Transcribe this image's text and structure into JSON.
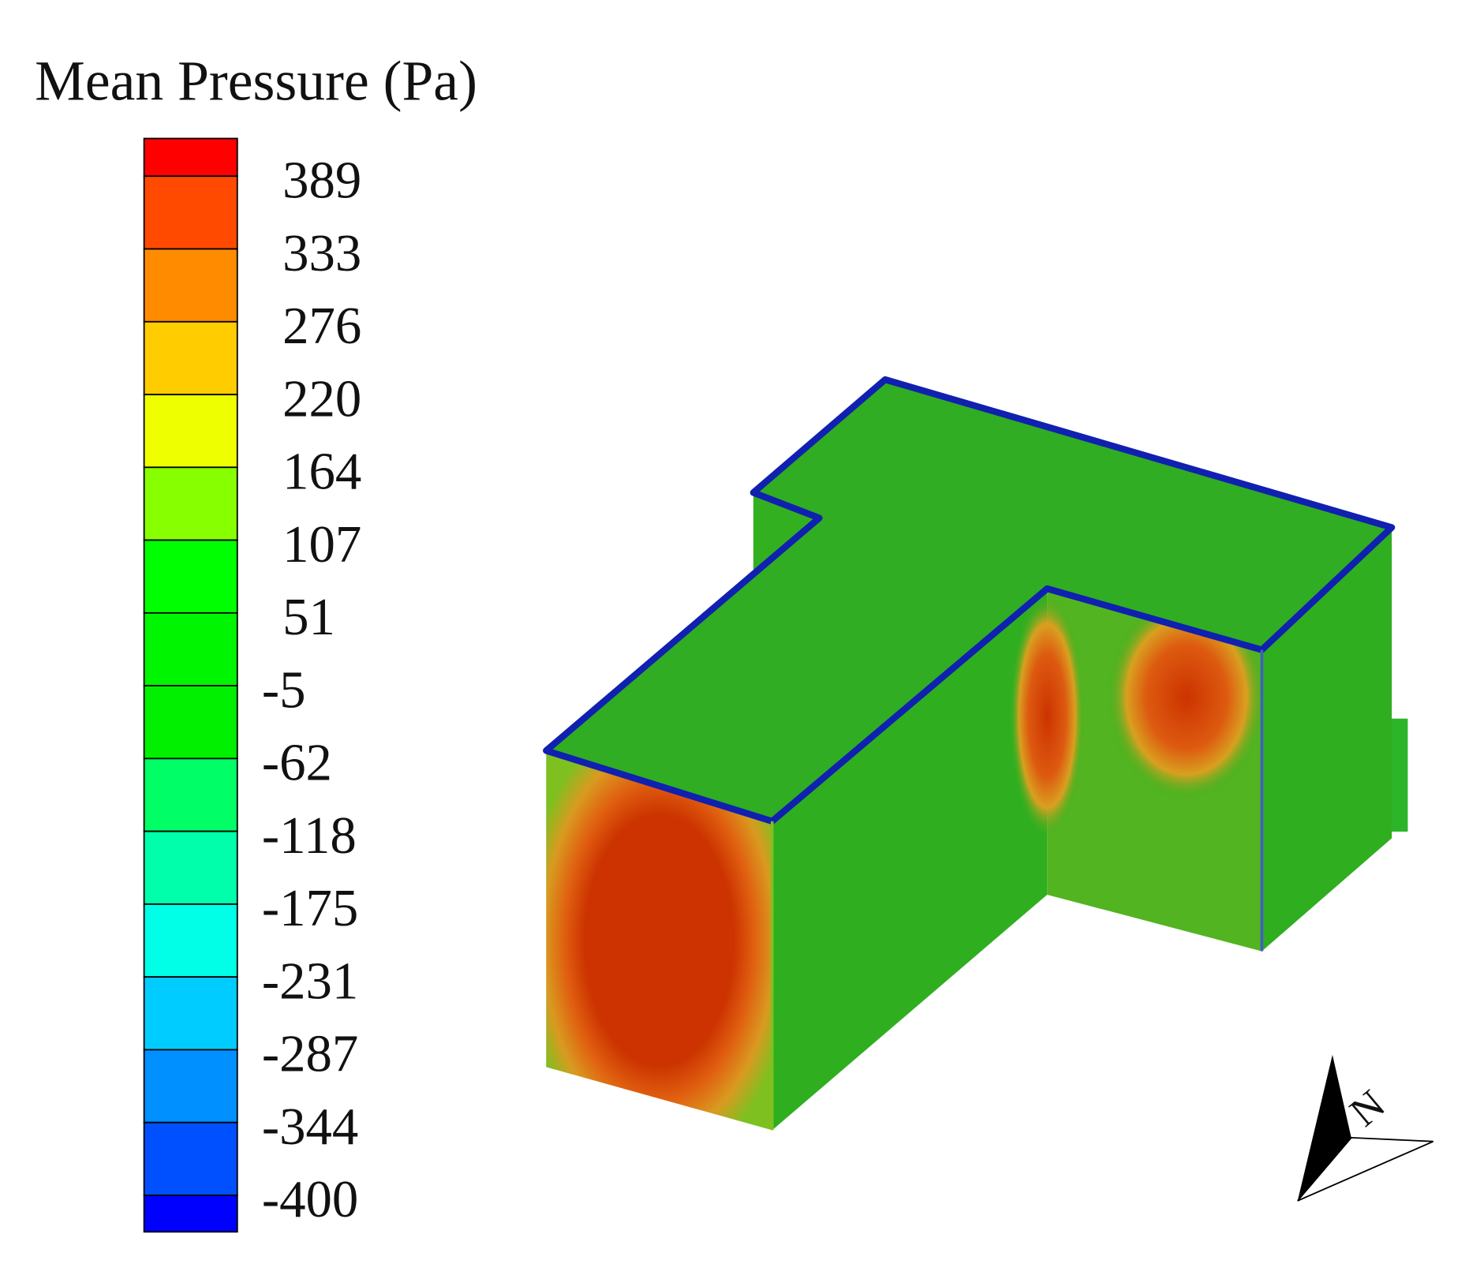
{
  "legend": {
    "title": "Mean Pressure (Pa)",
    "ticks": [
      389,
      333,
      276,
      220,
      164,
      107,
      51,
      -5,
      -62,
      -118,
      -175,
      -231,
      -287,
      -344,
      -400
    ],
    "colors": [
      "#ff0000",
      "#ff4a00",
      "#ff8c00",
      "#ffcc00",
      "#eeff00",
      "#88ff00",
      "#00ff00",
      "#00f500",
      "#00f000",
      "#00ff66",
      "#00ffaa",
      "#00ffe6",
      "#00ccff",
      "#0090ff",
      "#0050ff",
      "#0000ff"
    ]
  },
  "compass": {
    "label": "N"
  }
}
